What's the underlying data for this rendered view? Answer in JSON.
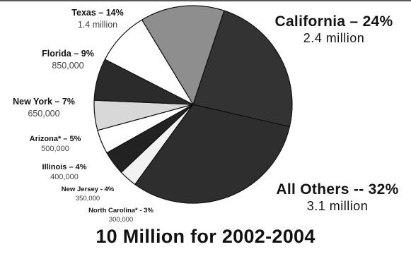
{
  "chart_data": {
    "type": "pie",
    "title": "10 Million for 2002-2004",
    "slices": [
      {
        "label": "All Others",
        "percent": 32,
        "value": "3.1 million",
        "label_text": "All Others -- 32%",
        "color": "#2e2e2e"
      },
      {
        "label": "North Carolina*",
        "percent": 3,
        "value": "300,000",
        "label_text": "North Carolina* - 3%",
        "color": "#f2f2f2"
      },
      {
        "label": "New Jersey",
        "percent": 4,
        "value": "350,000",
        "label_text": "New Jersey - 4%",
        "color": "#222222"
      },
      {
        "label": "Illinois",
        "percent": 4,
        "value": "400,000",
        "label_text": "Illinois – 4%",
        "color": "#ffffff"
      },
      {
        "label": "Arizona*",
        "percent": 5,
        "value": "500,000",
        "label_text": "Arizona* – 5%",
        "color": "#d8d8d8"
      },
      {
        "label": "New York",
        "percent": 7,
        "value": "650,000",
        "label_text": "New York – 7%",
        "color": "#2b2b2b"
      },
      {
        "label": "Florida",
        "percent": 9,
        "value": "850,000",
        "label_text": "Florida – 9%",
        "color": "#ffffff"
      },
      {
        "label": "Texas",
        "percent": 14,
        "value": "1.4 million",
        "label_text": "Texas – 14%",
        "color": "#8e8e8e"
      },
      {
        "label": "California",
        "percent": 24,
        "value": "2.4 million",
        "label_text": "California – 24%",
        "color": "#333333"
      }
    ]
  }
}
